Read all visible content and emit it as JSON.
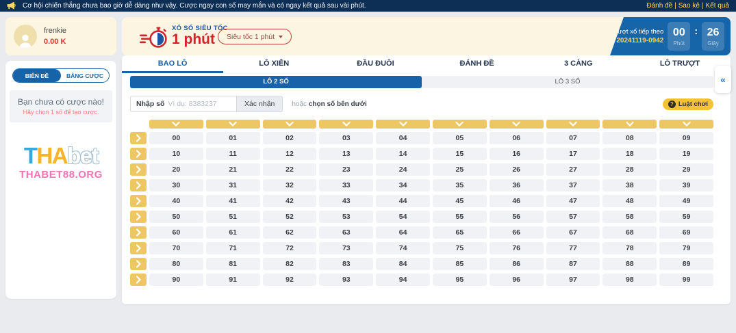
{
  "topbar": {
    "announcement": "Cơ hội chiến thắng chưa bao giờ dễ dàng như vậy. Cược ngay con số may mắn và có ngay kết quả sau vài phút.",
    "links": [
      "Đánh đề",
      "Sao kê",
      "Kết quả"
    ],
    "separator": "|"
  },
  "user": {
    "name": "frenkie",
    "balance": "0.00 K"
  },
  "header": {
    "logo_title": "XỔ SỐ SIÊU TỐC",
    "logo_subtitle": "1 phút",
    "speed_select_label": "Siêu tốc 1 phút",
    "timer": {
      "label": "Lượt xổ tiếp theo",
      "draw_id": "20241119-0942",
      "minutes": "00",
      "minutes_label": "Phút",
      "colon": ":",
      "seconds": "26",
      "seconds_label": "Giây"
    }
  },
  "sidebar": {
    "tabs": [
      {
        "label": "BIÊN ĐỀ",
        "active": true
      },
      {
        "label": "BẢNG CƯỢC",
        "active": false
      }
    ],
    "empty_title": "Bạn chưa có cược nào!",
    "empty_subtitle": "Hãy chọn 1 số để tạo cược.",
    "brand": {
      "part1": "T",
      "part2": "HA",
      "part3": "bet",
      "site": "THABET88.ORG"
    }
  },
  "main": {
    "tabs": [
      {
        "label": "BAO LÔ",
        "active": true
      },
      {
        "label": "LÔ XIÊN",
        "active": false
      },
      {
        "label": "ĐẦU ĐUÔI",
        "active": false
      },
      {
        "label": "ĐÁNH ĐỀ",
        "active": false
      },
      {
        "label": "3 CÀNG",
        "active": false
      },
      {
        "label": "LÔ TRƯỢT",
        "active": false
      }
    ],
    "subtabs": [
      {
        "label": "LÔ 2 SỐ",
        "active": true
      },
      {
        "label": "LÔ 3 SỐ",
        "active": false
      }
    ],
    "input_label": "Nhập số",
    "input_placeholder": "Ví dụ: 8383237",
    "confirm_button": "Xác nhận",
    "or_text": "hoặc ",
    "pick_text": "chọn số bên dưới",
    "rules_icon": "?",
    "rules_button": "Luật chơi",
    "collapse_icon": "«"
  },
  "grid": {
    "columns": 10,
    "rows": [
      [
        "00",
        "01",
        "02",
        "03",
        "04",
        "05",
        "06",
        "07",
        "08",
        "09"
      ],
      [
        "10",
        "11",
        "12",
        "13",
        "14",
        "15",
        "16",
        "17",
        "18",
        "19"
      ],
      [
        "20",
        "21",
        "22",
        "23",
        "24",
        "25",
        "26",
        "27",
        "28",
        "29"
      ],
      [
        "30",
        "31",
        "32",
        "33",
        "34",
        "35",
        "36",
        "37",
        "38",
        "39"
      ],
      [
        "40",
        "41",
        "42",
        "43",
        "44",
        "45",
        "46",
        "47",
        "48",
        "49"
      ],
      [
        "50",
        "51",
        "52",
        "53",
        "54",
        "55",
        "56",
        "57",
        "58",
        "59"
      ],
      [
        "60",
        "61",
        "62",
        "63",
        "64",
        "65",
        "66",
        "67",
        "68",
        "69"
      ],
      [
        "70",
        "71",
        "72",
        "73",
        "74",
        "75",
        "76",
        "77",
        "78",
        "79"
      ],
      [
        "80",
        "81",
        "82",
        "83",
        "84",
        "85",
        "86",
        "87",
        "88",
        "89"
      ],
      [
        "90",
        "91",
        "92",
        "93",
        "94",
        "95",
        "96",
        "97",
        "98",
        "99"
      ]
    ]
  },
  "colors": {
    "topbar_bg": "#0e2f55",
    "accent_blue": "#1763a8",
    "accent_red": "#d2232a",
    "cream": "#fbf5e2",
    "grid_yellow": "#edc763",
    "link_yellow": "#ffd75e",
    "brand_pink": "#f272b6"
  }
}
